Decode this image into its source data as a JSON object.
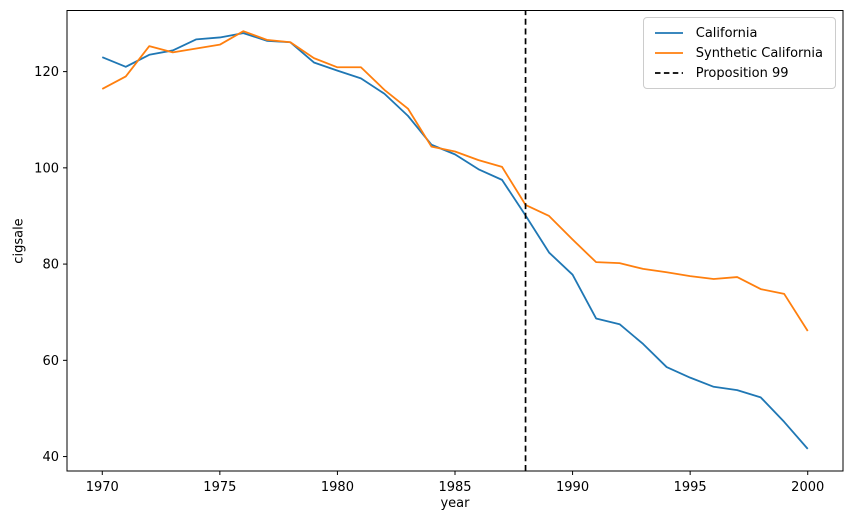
{
  "chart_data": {
    "type": "line",
    "title": "",
    "xlabel": "year",
    "ylabel": "cigsale",
    "grid": false,
    "legend_position": "upper right",
    "xlim": [
      1968.5,
      2001.5
    ],
    "ylim": [
      37.0,
      132.7
    ],
    "xticks": [
      1970,
      1975,
      1980,
      1985,
      1990,
      1995,
      2000
    ],
    "yticks": [
      40,
      60,
      80,
      100,
      120
    ],
    "x": [
      1970,
      1971,
      1972,
      1973,
      1974,
      1975,
      1976,
      1977,
      1978,
      1979,
      1980,
      1981,
      1982,
      1983,
      1984,
      1985,
      1986,
      1987,
      1988,
      1989,
      1990,
      1991,
      1992,
      1993,
      1994,
      1995,
      1996,
      1997,
      1998,
      1999,
      2000
    ],
    "series": [
      {
        "name": "California",
        "color": "#1f77b4",
        "style": "solid",
        "values": [
          123.0,
          121.0,
          123.5,
          124.4,
          126.7,
          127.1,
          128.0,
          126.4,
          126.1,
          121.9,
          120.2,
          118.6,
          115.4,
          110.8,
          104.8,
          102.8,
          99.7,
          97.5,
          90.1,
          82.4,
          77.8,
          68.7,
          67.5,
          63.4,
          58.6,
          56.4,
          54.5,
          53.8,
          52.3,
          47.2,
          41.6
        ]
      },
      {
        "name": "Synthetic California",
        "color": "#ff7f0e",
        "style": "solid",
        "values": [
          116.4,
          119.0,
          125.3,
          124.0,
          124.8,
          125.6,
          128.4,
          126.6,
          126.1,
          122.8,
          120.9,
          120.9,
          116.2,
          112.3,
          104.4,
          103.4,
          101.6,
          100.2,
          92.3,
          90.0,
          85.1,
          80.4,
          80.2,
          79.0,
          78.3,
          77.5,
          76.9,
          77.3,
          74.8,
          73.8,
          66.1
        ]
      }
    ],
    "vline": {
      "x": 1988,
      "label": "Proposition 99",
      "color": "#000000",
      "style": "dashed"
    },
    "axis_color": "#000000",
    "background_color": "#ffffff"
  }
}
